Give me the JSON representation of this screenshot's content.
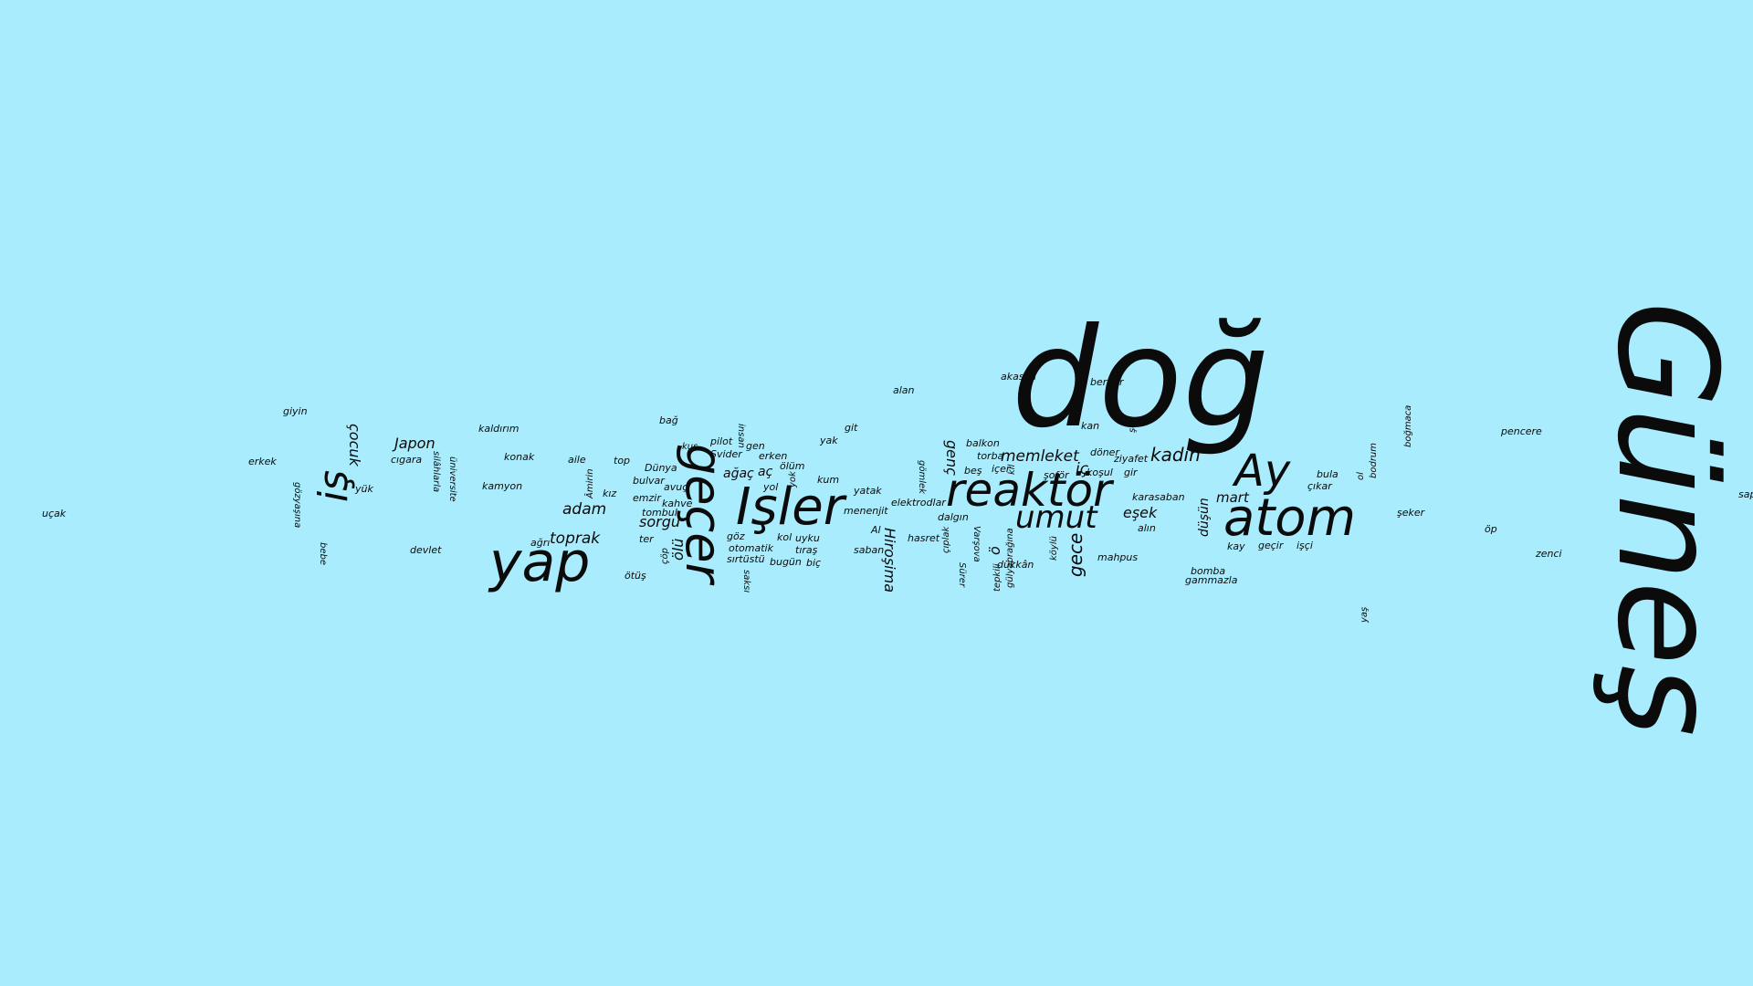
{
  "title": "Word cloud",
  "background_color": "#a9ecfd",
  "text_color": "#0b0b0b",
  "words": {
    "dog": "doğ",
    "gunes": "Güneş",
    "reaktor": "reaktör",
    "atom": "atom",
    "isler": "Işler",
    "gecer": "geçer",
    "yap": "yap",
    "ay": "Ay",
    "umut": "umut",
    "is": "iş",
    "kadin": "kadın",
    "memleket": "memleket",
    "gece": "gece",
    "toprak": "toprak",
    "adam": "adam",
    "sorgu": "sorgu",
    "japon": "Japon",
    "cocuk": "çocuk",
    "hirosima": "Hiroşima",
    "olu": "ölü",
    "esek": "eşek",
    "mart": "mart",
    "dusun": "düşün",
    "genc": "genç",
    "ic": "iç",
    "agac": "ağaç",
    "ac": "aç",
    "o": "ö",
    "ucak": "uçak",
    "giyin": "giyin",
    "erkek": "erkek",
    "gozyasina": "gözyaşına",
    "bebe": "bebe",
    "yuk": "yük",
    "cigara": "cıgara",
    "silahlarla": "silâhlarla",
    "universite": "üniversite",
    "devlet": "devlet",
    "kaldirim": "kaldırım",
    "konak": "konak",
    "kamyon": "kamyon",
    "aile": "aile",
    "amirin": "Âmirin",
    "kiz": "kız",
    "agri": "ağrı",
    "otus": "ötüş",
    "bag": "bağ",
    "top": "top",
    "kus": "kuş",
    "dunya": "Dünya",
    "bulvar": "bulvar",
    "avuc": "avuç",
    "emzir": "emzir",
    "kahve": "kahve",
    "tombul": "tombul",
    "ter": "ter",
    "cop": "çöp",
    "saksi": "saksı",
    "pilot": "pilot",
    "insan": "insan",
    "gen": "gen",
    "svider": "Şvider",
    "erken": "erken",
    "olum": "ölüm",
    "yol": "yol",
    "yok": "yok",
    "kol": "kol",
    "uyku": "uyku",
    "goz": "göz",
    "otomatik": "otomatik",
    "tiras": "tıraş",
    "sirtustu": "sırtüstü",
    "bugun": "bugün",
    "bic": "biç",
    "git": "git",
    "yak": "yak",
    "kum": "kum",
    "yatak": "yatak",
    "menenjit": "menenjit",
    "al": "Al",
    "saban": "saban",
    "alan": "alan",
    "gomlek": "gömlek",
    "elektrodlar": "elektrodlar",
    "dalgin": "dalgın",
    "hasret": "hasret",
    "ciplak": "çıplak",
    "varsova": "Varşova",
    "surer": "Sürer",
    "tepkili": "tepkili",
    "gulyapragina": "gülyaprağına",
    "balkon": "balkon",
    "torba": "torba",
    "bes": "beş",
    "icer": "içer",
    "kil": "kıl",
    "sofor": "şoför",
    "koylu": "köylü",
    "dukkan": "dükkân",
    "akasya": "akasya",
    "berber": "berber",
    "kan": "kan",
    "sek": "şek",
    "doner": "döner",
    "ziyafet": "ziyafet",
    "kosul": "koşul",
    "gir": "gir",
    "karasaban": "karasaban",
    "alin": "alın",
    "mahpus": "mahpus",
    "bomba": "bomba",
    "gammazla": "gammazla",
    "kay": "kay",
    "gecir": "geçir",
    "isci": "işçi",
    "bula": "bula",
    "cikar": "çıkar",
    "ol": "ol",
    "bodrum": "bodrum",
    "bogmaca": "boğmaca",
    "seker": "şeker",
    "yas": "yaş",
    "pencere": "pencere",
    "op": "öp",
    "zenci": "zenci",
    "sap": "sap"
  }
}
